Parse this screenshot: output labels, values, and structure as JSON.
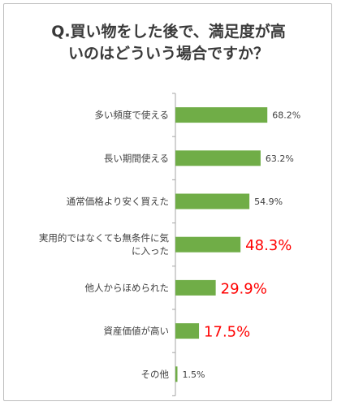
{
  "title_lines": [
    "Q.買い物をした後で、満足度が高",
    "いのはどういう場合ですか？"
  ],
  "chart_data": {
    "type": "bar",
    "orientation": "horizontal",
    "categories": [
      [
        "多い頻度で使える"
      ],
      [
        "長い期間使える"
      ],
      [
        "通常価格より安く買えた"
      ],
      [
        "実用的ではなくても無条件に気",
        "に入った"
      ],
      [
        "他人からほめられた"
      ],
      [
        "資産価値が高い"
      ],
      [
        "その他"
      ]
    ],
    "values": [
      68.2,
      63.2,
      54.9,
      48.3,
      29.9,
      17.5,
      1.5
    ],
    "labels": [
      "68.2%",
      "63.2%",
      "54.9%",
      "48.3%",
      "29.9%",
      "17.5%",
      "1.5%"
    ],
    "highlighted": [
      false,
      false,
      false,
      true,
      true,
      true,
      false
    ],
    "title": "Q.買い物をした後で、満足度が高いのはどういう場合ですか？",
    "xlim": [
      0,
      100
    ],
    "colors": {
      "bar": "#70ad47",
      "axis": "#a6a6a6",
      "label": "#404040",
      "highlight": "#ff0000"
    }
  }
}
